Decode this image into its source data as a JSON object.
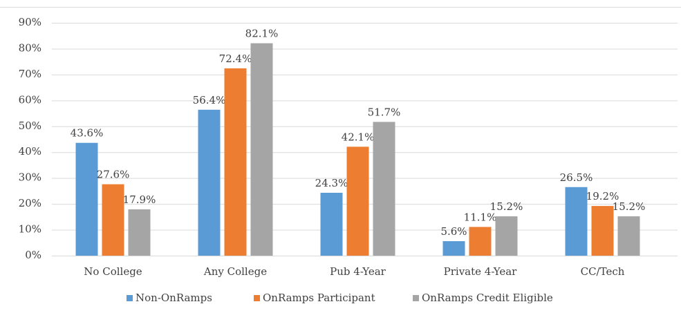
{
  "chart_data": {
    "type": "bar",
    "categories": [
      "No College",
      "Any College",
      "Pub 4-Year",
      "Private 4-Year",
      "CC/Tech"
    ],
    "series": [
      {
        "name": "Non-OnRamps",
        "color": "#5b9bd5",
        "values": [
          43.6,
          56.4,
          24.3,
          5.6,
          26.5
        ],
        "value_labels": [
          "43.6%",
          "56.4%",
          "24.3%",
          "5.6%",
          "26.5%"
        ]
      },
      {
        "name": "OnRamps Participant",
        "color": "#ed7d31",
        "values": [
          27.6,
          72.4,
          42.1,
          11.1,
          19.2
        ],
        "value_labels": [
          "27.6%",
          "72.4%",
          "42.1%",
          "11.1%",
          "19.2%"
        ]
      },
      {
        "name": "OnRamps Credit Eligible",
        "color": "#a5a5a5",
        "values": [
          17.9,
          82.1,
          51.7,
          15.2,
          15.2
        ],
        "value_labels": [
          "17.9%",
          "82.1%",
          "51.7%",
          "15.2%",
          "15.2%"
        ]
      }
    ],
    "ylim": [
      0,
      90
    ],
    "yticks": [
      {
        "value": 0,
        "label": "0%"
      },
      {
        "value": 10,
        "label": "10%"
      },
      {
        "value": 20,
        "label": "20%"
      },
      {
        "value": 30,
        "label": "30%"
      },
      {
        "value": 40,
        "label": "40%"
      },
      {
        "value": 50,
        "label": "50%"
      },
      {
        "value": 60,
        "label": "60%"
      },
      {
        "value": 70,
        "label": "70%"
      },
      {
        "value": 80,
        "label": "80%"
      },
      {
        "value": 90,
        "label": "90%"
      }
    ],
    "grid": true,
    "legend": "bottom"
  }
}
